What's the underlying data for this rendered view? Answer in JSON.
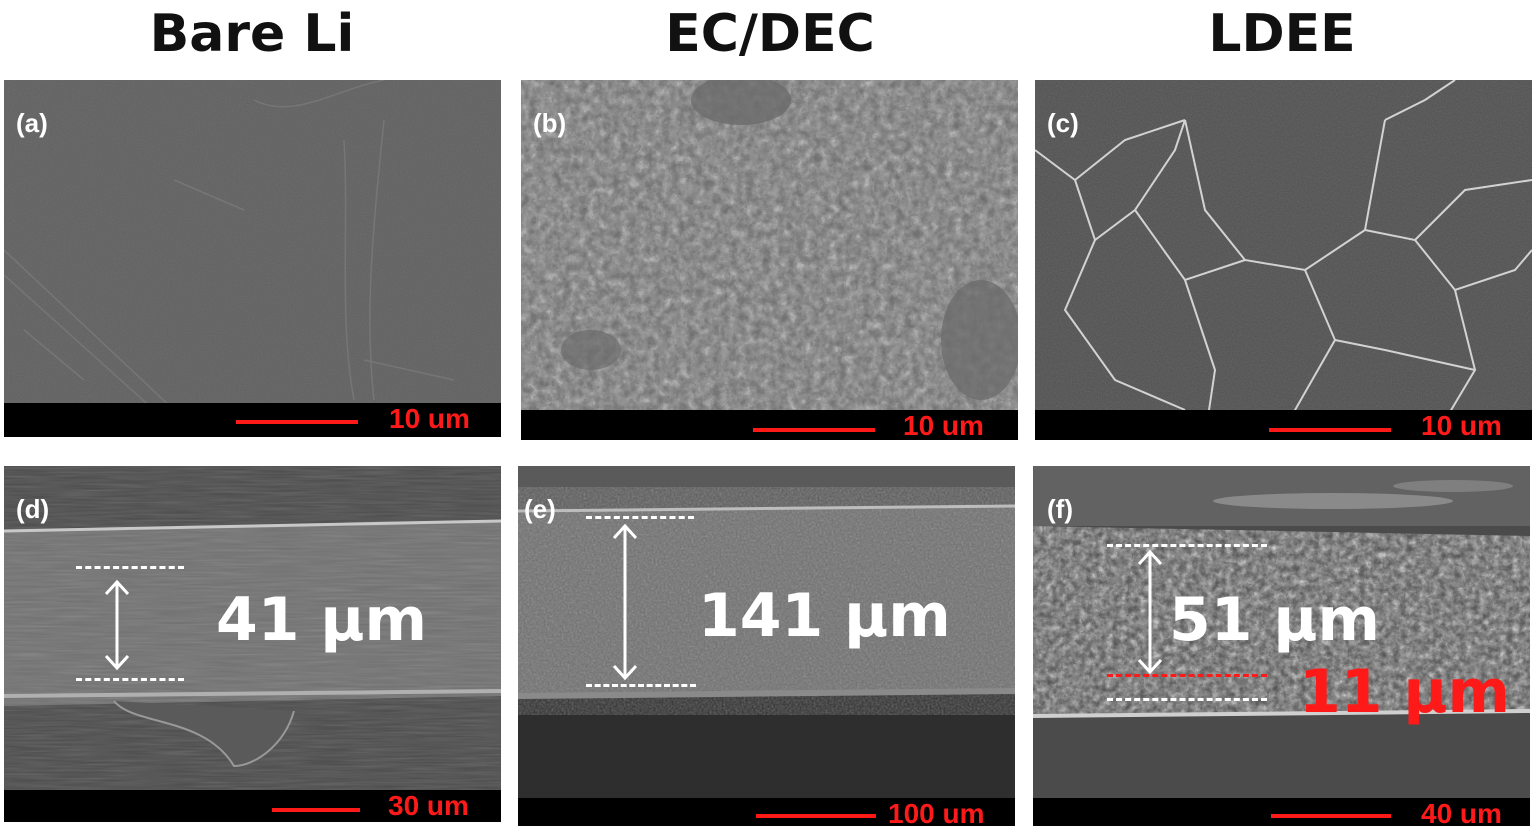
{
  "columns": [
    "Bare Li",
    "EC/DEC",
    "LDEE"
  ],
  "panels": {
    "a": {
      "label": "(a)",
      "scale": "10 um"
    },
    "b": {
      "label": "(b)",
      "scale": "10 um"
    },
    "c": {
      "label": "(c)",
      "scale": "10 um"
    },
    "d": {
      "label": "(d)",
      "scale": "30 um",
      "measure": "41 μm"
    },
    "e": {
      "label": "(e)",
      "scale": "100 um",
      "measure": "141 μm"
    },
    "f": {
      "label": "(f)",
      "scale": "40 um",
      "measure": "51 μm",
      "measure2": "11 μm"
    }
  },
  "colors": {
    "scale": "#ff1a1a",
    "annotation": "#ffffff",
    "highlight": "#ff1a1a"
  }
}
